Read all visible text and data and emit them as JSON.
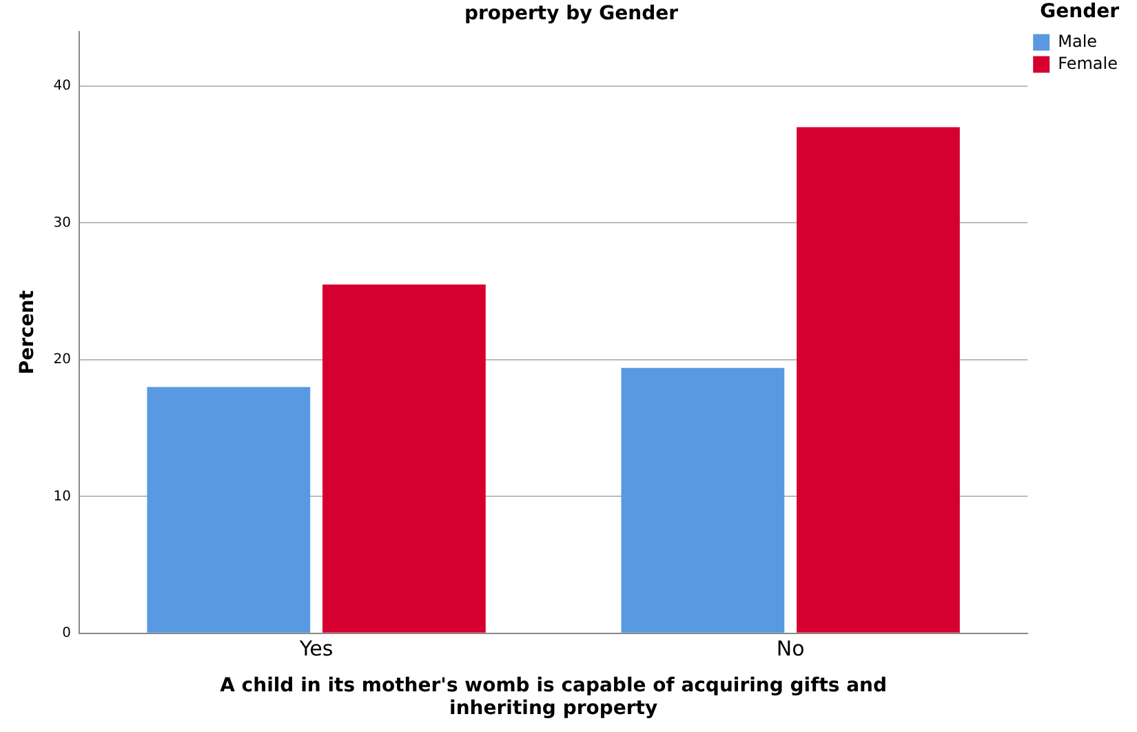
{
  "chart_data": {
    "type": "bar",
    "title": "property by Gender",
    "xlabel": "A child in its mother's womb is capable of acquiring gifts and inheriting property",
    "ylabel": "Percent",
    "legend_title": "Gender",
    "categories": [
      "Yes",
      "No"
    ],
    "series": [
      {
        "name": "Male",
        "color": "#5899e2",
        "values": [
          18,
          19.4
        ]
      },
      {
        "name": "Female",
        "color": "#d5002f",
        "values": [
          25.5,
          37
        ]
      }
    ],
    "ylim": [
      0,
      44
    ],
    "yticks": [
      0,
      10,
      20,
      30,
      40
    ],
    "grid": "y",
    "legend": "top right"
  }
}
